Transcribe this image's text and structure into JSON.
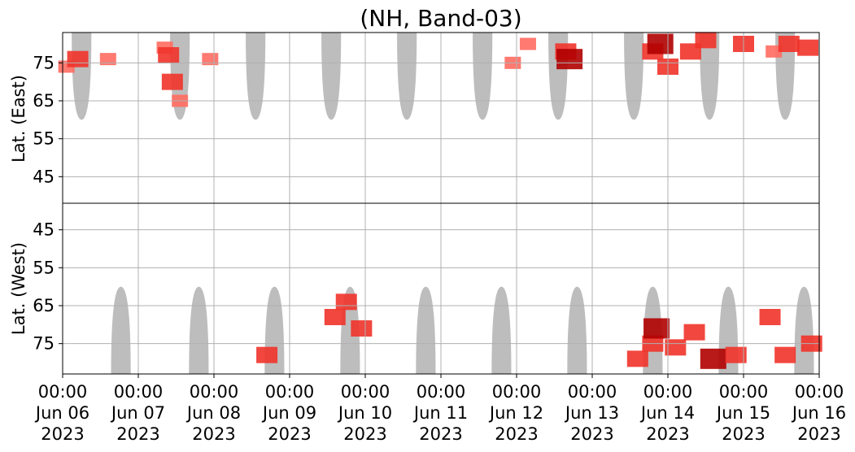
{
  "chart_data": {
    "type": "heatmap",
    "title": "(NH, Band-03)",
    "ylabel_top": "Lat. (East)",
    "ylabel_bottom": "Lat. (West)",
    "x_ticks": [
      {
        "day": 0,
        "lines": [
          "00:00",
          "Jun 06",
          "2023"
        ]
      },
      {
        "day": 1,
        "lines": [
          "00:00",
          "Jun 07",
          "2023"
        ]
      },
      {
        "day": 2,
        "lines": [
          "00:00",
          "Jun 08",
          "2023"
        ]
      },
      {
        "day": 3,
        "lines": [
          "00:00",
          "Jun 09",
          "2023"
        ]
      },
      {
        "day": 4,
        "lines": [
          "00:00",
          "Jun 10",
          "2023"
        ]
      },
      {
        "day": 5,
        "lines": [
          "00:00",
          "Jun 11",
          "2023"
        ]
      },
      {
        "day": 6,
        "lines": [
          "00:00",
          "Jun 12",
          "2023"
        ]
      },
      {
        "day": 7,
        "lines": [
          "00:00",
          "Jun 13",
          "2023"
        ]
      },
      {
        "day": 8,
        "lines": [
          "00:00",
          "Jun 14",
          "2023"
        ]
      },
      {
        "day": 9,
        "lines": [
          "00:00",
          "Jun 15",
          "2023"
        ]
      },
      {
        "day": 10,
        "lines": [
          "00:00",
          "Jun 16",
          "2023"
        ]
      }
    ],
    "xlim_days": [
      0,
      10
    ],
    "top_panel": {
      "yticks": [
        45,
        55,
        65,
        75
      ],
      "ylim": [
        38,
        83
      ],
      "inverted": false
    },
    "bottom_panel": {
      "yticks": [
        75,
        65,
        55,
        45
      ],
      "ylim": [
        38,
        83
      ],
      "inverted": true
    },
    "grid": true,
    "colors": {
      "night_region": "#bdbdbd",
      "activity_low": "#ff6b60",
      "activity_mid": "#f0332a",
      "activity_high": "#b00000",
      "grid": "#b0b0b0"
    },
    "night_regions": {
      "top_centers": [
        0.25,
        1.55,
        2.55,
        3.55,
        4.55,
        5.55,
        6.55,
        7.55,
        8.55,
        9.55
      ],
      "bottom_centers": [
        0.77,
        1.8,
        2.8,
        3.8,
        4.8,
        5.8,
        6.8,
        7.8,
        8.8,
        9.8
      ],
      "half_width_days": 0.13,
      "reach_lat": 60
    },
    "activity_east": [
      {
        "day": 0.05,
        "lat": 74,
        "intensity": 1
      },
      {
        "day": 0.2,
        "lat": 76,
        "intensity": 2
      },
      {
        "day": 0.6,
        "lat": 76,
        "intensity": 1
      },
      {
        "day": 1.35,
        "lat": 79,
        "intensity": 1
      },
      {
        "day": 1.4,
        "lat": 77,
        "intensity": 2
      },
      {
        "day": 1.45,
        "lat": 70,
        "intensity": 2
      },
      {
        "day": 1.55,
        "lat": 65,
        "intensity": 1
      },
      {
        "day": 1.95,
        "lat": 76,
        "intensity": 1
      },
      {
        "day": 5.95,
        "lat": 75,
        "intensity": 1
      },
      {
        "day": 6.15,
        "lat": 80,
        "intensity": 1
      },
      {
        "day": 6.65,
        "lat": 78,
        "intensity": 2
      },
      {
        "day": 6.7,
        "lat": 76,
        "intensity": 3
      },
      {
        "day": 7.8,
        "lat": 78,
        "intensity": 2
      },
      {
        "day": 7.9,
        "lat": 80,
        "intensity": 3
      },
      {
        "day": 8.0,
        "lat": 74,
        "intensity": 2
      },
      {
        "day": 8.3,
        "lat": 78,
        "intensity": 2
      },
      {
        "day": 8.5,
        "lat": 81,
        "intensity": 2
      },
      {
        "day": 9.0,
        "lat": 80,
        "intensity": 2
      },
      {
        "day": 9.4,
        "lat": 78,
        "intensity": 1
      },
      {
        "day": 9.6,
        "lat": 80,
        "intensity": 2
      },
      {
        "day": 9.85,
        "lat": 79,
        "intensity": 2
      }
    ],
    "activity_west": [
      {
        "day": 2.7,
        "lat": 78,
        "intensity": 2
      },
      {
        "day": 3.6,
        "lat": 68,
        "intensity": 2
      },
      {
        "day": 3.75,
        "lat": 64,
        "intensity": 2
      },
      {
        "day": 3.95,
        "lat": 71,
        "intensity": 2
      },
      {
        "day": 7.6,
        "lat": 79,
        "intensity": 2
      },
      {
        "day": 7.8,
        "lat": 75,
        "intensity": 2
      },
      {
        "day": 7.85,
        "lat": 71,
        "intensity": 3
      },
      {
        "day": 8.1,
        "lat": 76,
        "intensity": 2
      },
      {
        "day": 8.35,
        "lat": 72,
        "intensity": 2
      },
      {
        "day": 8.6,
        "lat": 79,
        "intensity": 3
      },
      {
        "day": 8.9,
        "lat": 78,
        "intensity": 2
      },
      {
        "day": 9.35,
        "lat": 68,
        "intensity": 2
      },
      {
        "day": 9.55,
        "lat": 78,
        "intensity": 2
      },
      {
        "day": 9.9,
        "lat": 75,
        "intensity": 2
      }
    ]
  }
}
